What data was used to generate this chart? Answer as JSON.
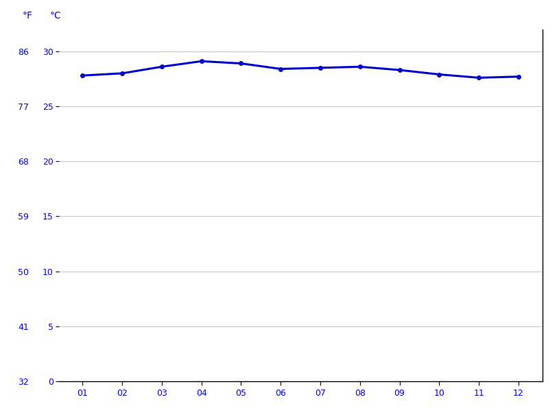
{
  "months": [
    1,
    2,
    3,
    4,
    5,
    6,
    7,
    8,
    9,
    10,
    11,
    12
  ],
  "month_labels": [
    "01",
    "02",
    "03",
    "04",
    "05",
    "06",
    "07",
    "08",
    "09",
    "10",
    "11",
    "12"
  ],
  "temp_c": [
    27.8,
    28.0,
    28.6,
    29.1,
    28.9,
    28.4,
    28.5,
    28.6,
    28.3,
    27.9,
    27.6,
    27.7
  ],
  "y_ticks_c": [
    0,
    5,
    10,
    15,
    20,
    25,
    30
  ],
  "y_ticks_f": [
    32,
    41,
    50,
    59,
    68,
    77,
    86
  ],
  "ylim_c": [
    0,
    32
  ],
  "xlim": [
    0.4,
    12.6
  ],
  "line_color": "#0000cc",
  "marker_color": "#0000cc",
  "grid_color": "#c8c8c8",
  "label_color": "#0000ff",
  "background_color": "#ffffff",
  "axis_color": "#000000",
  "fahrenheit_label": "°F",
  "celsius_label": "°C",
  "fontsize_ticks": 9,
  "fontsize_labels": 10,
  "linewidth": 2.2,
  "markersize": 4
}
